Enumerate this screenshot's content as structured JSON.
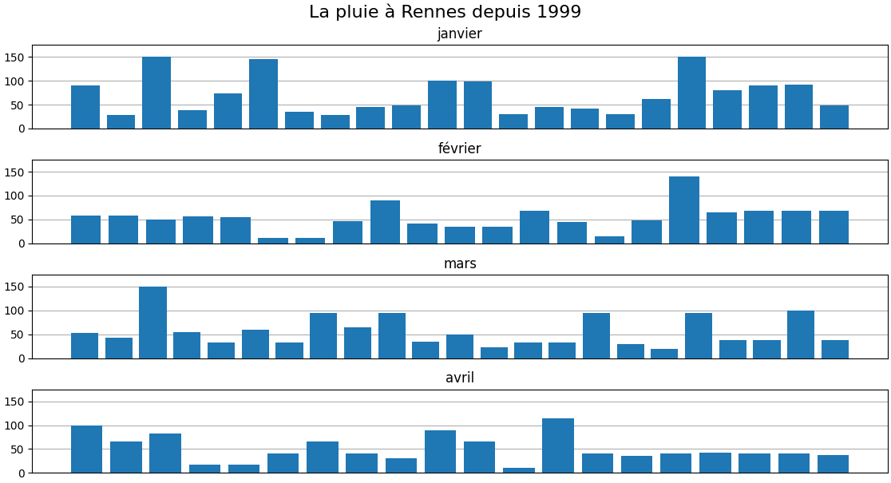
{
  "title": "La pluie à Rennes depuis 1999",
  "chart_data": [
    {
      "type": "bar",
      "title": "janvier",
      "categories": [
        null,
        null,
        null,
        null,
        null,
        null,
        null,
        null,
        null,
        null,
        null,
        null,
        null,
        null,
        null,
        null,
        null,
        null,
        null,
        null,
        null,
        null
      ],
      "values": [
        90,
        28,
        150,
        38,
        73,
        145,
        35,
        28,
        45,
        48,
        100,
        98,
        30,
        45,
        42,
        30,
        62,
        150,
        80,
        90,
        92,
        48
      ],
      "ylim": [
        0,
        175
      ],
      "yticks": [
        0,
        50,
        100,
        150
      ],
      "grid": true,
      "tick_labels": "y"
    },
    {
      "type": "bar",
      "title": "février",
      "categories": [
        null,
        null,
        null,
        null,
        null,
        null,
        null,
        null,
        null,
        null,
        null,
        null,
        null,
        null,
        null,
        null,
        null,
        null,
        null,
        null,
        null
      ],
      "values": [
        58,
        58,
        50,
        57,
        55,
        12,
        12,
        46,
        90,
        42,
        35,
        35,
        68,
        45,
        15,
        48,
        140,
        64,
        68,
        68,
        68
      ],
      "ylim": [
        0,
        175
      ],
      "yticks": [
        0,
        50,
        100,
        150
      ],
      "grid": true,
      "tick_labels": "y"
    },
    {
      "type": "bar",
      "title": "mars",
      "categories": [
        null,
        null,
        null,
        null,
        null,
        null,
        null,
        null,
        null,
        null,
        null,
        null,
        null,
        null,
        null,
        null,
        null,
        null,
        null,
        null,
        null,
        null,
        null
      ],
      "values": [
        52,
        42,
        150,
        55,
        32,
        60,
        32,
        95,
        65,
        95,
        35,
        50,
        22,
        32,
        32,
        95,
        30,
        20,
        95,
        38,
        38,
        100,
        38
      ],
      "ylim": [
        0,
        175
      ],
      "yticks": [
        0,
        50,
        100,
        150
      ],
      "grid": true,
      "tick_labels": "y"
    },
    {
      "type": "bar",
      "title": "avril",
      "categories": [
        null,
        null,
        null,
        null,
        null,
        null,
        null,
        null,
        null,
        null,
        null,
        null,
        null,
        null,
        null,
        null,
        null,
        null,
        null,
        null
      ],
      "values": [
        100,
        65,
        82,
        18,
        18,
        40,
        65,
        40,
        30,
        90,
        65,
        10,
        115,
        40,
        35,
        40,
        42,
        40,
        40,
        38
      ],
      "ylim": [
        0,
        175
      ],
      "yticks": [
        0,
        50,
        100,
        150
      ],
      "grid": true,
      "tick_labels": "y"
    }
  ]
}
